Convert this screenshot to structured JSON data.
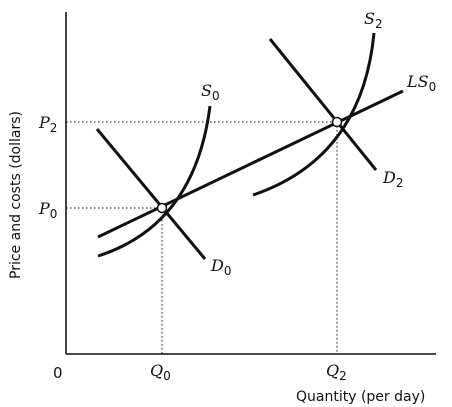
{
  "axes": {
    "y_label": "Price and costs (dollars)",
    "x_label": "Quantity (per day)",
    "origin": "0",
    "y_ticks": [
      {
        "letter": "P",
        "sub": "2"
      },
      {
        "letter": "P",
        "sub": "0"
      }
    ],
    "x_ticks": [
      {
        "letter": "Q",
        "sub": "0"
      },
      {
        "letter": "Q",
        "sub": "2"
      }
    ]
  },
  "curves": {
    "s0": {
      "letter": "S",
      "sub": "0"
    },
    "s2": {
      "letter": "S",
      "sub": "2"
    },
    "ls0": {
      "letter": "LS",
      "sub": "0"
    },
    "d0": {
      "letter": "D",
      "sub": "0"
    },
    "d2": {
      "letter": "D",
      "sub": "2"
    }
  },
  "colors": {
    "ink": "#111111",
    "point_fill": "#ffffff"
  }
}
